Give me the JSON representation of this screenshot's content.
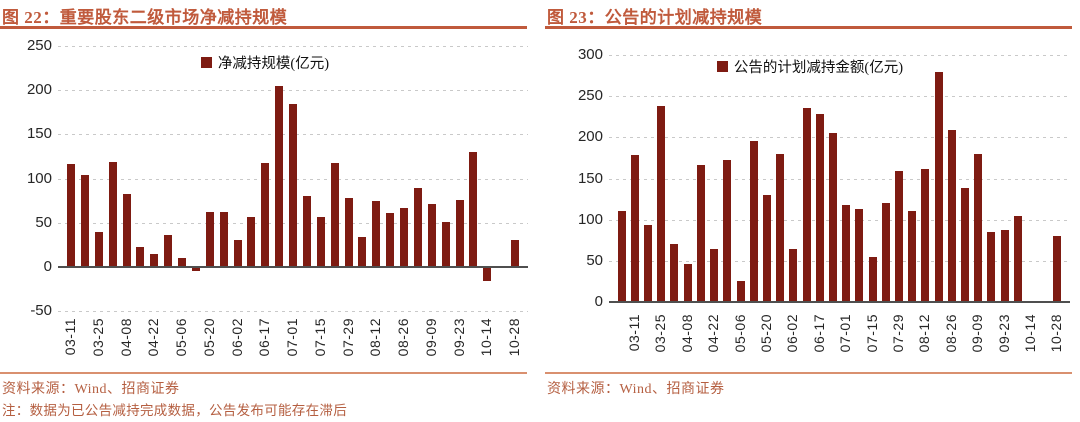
{
  "colors": {
    "bar": "#7E1B12",
    "accent": "#C05A3C",
    "bottom_rule": "#D9906F",
    "tick_text": "#262626",
    "source_text": "#B55F41",
    "grid": "#C9C9C9",
    "axis": "#4F4F4F"
  },
  "figures": [
    {
      "title": "图 22：重要股东二级市场净减持规模",
      "source": "资料来源：Wind、招商证券",
      "note": "注：数据为已公告减持完成数据，公告发布可能存在滞后"
    },
    {
      "title": "图 23：公告的计划减持规模",
      "source": "资料来源：Wind、招商证券"
    }
  ],
  "chart_data": [
    {
      "type": "bar",
      "title": "图 22：重要股东二级市场净减持规模",
      "legend": "净减持规模(亿元)",
      "legend_position": "top-center",
      "grid": "horizontal-dashed",
      "ylim": [
        -50,
        250
      ],
      "ytick_step": 50,
      "yticks": [
        "250",
        "200",
        "150",
        "100",
        "50",
        "0",
        "-50"
      ],
      "xlabel": "",
      "ylabel": "",
      "categories": [
        "03-11",
        "",
        "03-25",
        "",
        "04-08",
        "",
        "04-22",
        "",
        "05-06",
        "",
        "05-20",
        "",
        "06-02",
        "",
        "06-17",
        "",
        "07-01",
        "",
        "07-15",
        "",
        "07-29",
        "",
        "08-12",
        "",
        "08-26",
        "",
        "09-09",
        "",
        "09-23",
        "",
        "10-14",
        "",
        "10-28"
      ],
      "values": [
        117,
        104,
        39,
        119,
        83,
        22,
        15,
        36,
        10,
        -5,
        62,
        62,
        31,
        56,
        118,
        205,
        184,
        80,
        56,
        118,
        78,
        34,
        75,
        61,
        67,
        89,
        71,
        51,
        76,
        130,
        -16,
        0,
        30
      ]
    },
    {
      "type": "bar",
      "title": "图 23：公告的计划减持规模",
      "legend": "公告的计划减持金额(亿元)",
      "legend_position": "top-center",
      "grid": "horizontal-dashed",
      "ylim": [
        0,
        300
      ],
      "ytick_step": 50,
      "yticks": [
        "300",
        "250",
        "200",
        "150",
        "100",
        "50",
        "0"
      ],
      "xlabel": "",
      "ylabel": "",
      "categories": [
        "",
        "03-11",
        "",
        "03-25",
        "",
        "04-08",
        "",
        "04-22",
        "",
        "05-06",
        "",
        "05-20",
        "",
        "06-02",
        "",
        "06-17",
        "",
        "07-01",
        "",
        "07-15",
        "",
        "07-29",
        "",
        "08-12",
        "",
        "08-26",
        "",
        "09-09",
        "",
        "09-23",
        "",
        "10-14",
        "",
        "10-28"
      ],
      "values": [
        111,
        178,
        93,
        238,
        70,
        46,
        167,
        65,
        173,
        26,
        195,
        130,
        180,
        65,
        236,
        229,
        205,
        118,
        113,
        55,
        120,
        159,
        110,
        162,
        280,
        209,
        138,
        180,
        85,
        88,
        104,
        0,
        0,
        80
      ]
    }
  ]
}
